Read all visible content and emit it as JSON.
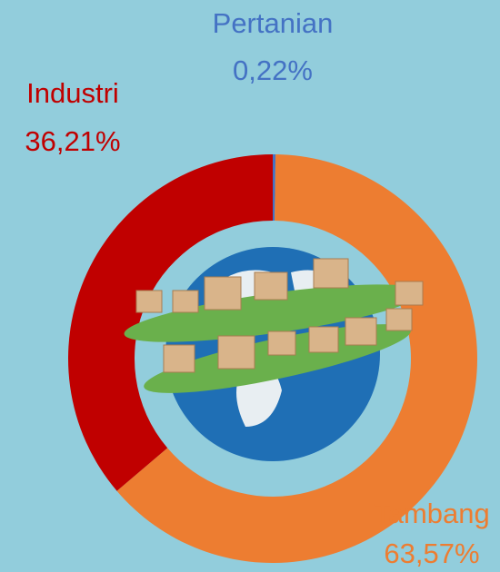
{
  "chart_data": {
    "type": "donut",
    "categories": [
      "Pertanian",
      "Tambang",
      "Industri"
    ],
    "values": [
      0.22,
      63.57,
      36.21
    ],
    "value_labels": [
      "0,22%",
      "63,57%",
      "36,21%"
    ],
    "colors": [
      "#4472c4",
      "#ed7d31",
      "#c00000"
    ]
  }
}
